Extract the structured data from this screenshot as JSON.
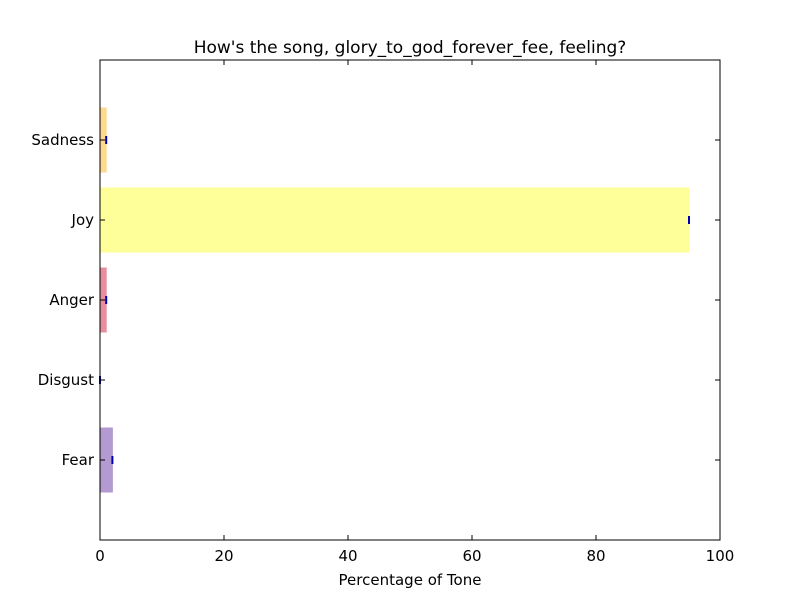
{
  "chart_data": {
    "type": "bar",
    "orientation": "horizontal",
    "title": "How's the song, glory_to_god_forever_fee, feeling?",
    "xlabel": "Percentage of Tone",
    "ylabel": "",
    "xlim": [
      0,
      100
    ],
    "x_ticks": [
      "0",
      "20",
      "40",
      "60",
      "80",
      "100"
    ],
    "categories": [
      "Fear",
      "Disgust",
      "Anger",
      "Joy",
      "Sadness"
    ],
    "values": [
      2,
      0,
      1,
      95,
      1
    ],
    "bar_colors": [
      "#b39ad0",
      "#98e0c0",
      "#e88c9e",
      "#ffff99",
      "#ffd890"
    ],
    "grid": false,
    "legend": "none"
  }
}
